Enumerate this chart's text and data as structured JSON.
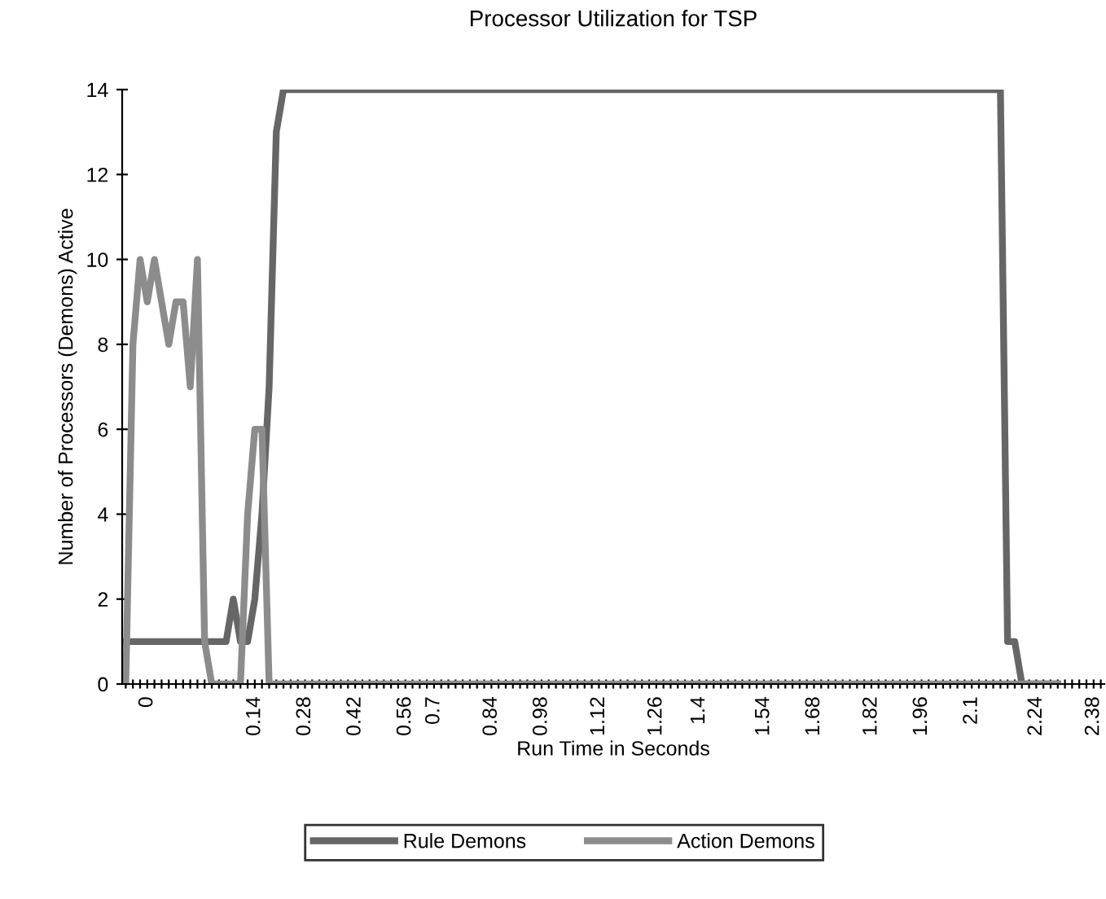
{
  "chart_data": {
    "type": "line",
    "title": "Processor Utilization for TSP",
    "xlabel": "Run Time in Seconds",
    "ylabel": "Number of Processors (Demons) Active",
    "categories": [
      null,
      null,
      null,
      "0",
      null,
      null,
      null,
      null,
      null,
      null,
      null,
      null,
      null,
      null,
      null,
      null,
      null,
      null,
      "0.14",
      null,
      null,
      null,
      null,
      null,
      null,
      "0.28",
      null,
      null,
      null,
      null,
      null,
      null,
      "0.42",
      null,
      null,
      null,
      null,
      null,
      null,
      "0.56",
      null,
      null,
      null,
      "0.7",
      null,
      null,
      null,
      null,
      null,
      null,
      null,
      "0.84",
      null,
      null,
      null,
      null,
      null,
      null,
      "0.98",
      null,
      null,
      null,
      null,
      null,
      null,
      null,
      "1.12",
      null,
      null,
      null,
      null,
      null,
      null,
      null,
      "1.26",
      null,
      null,
      null,
      null,
      null,
      "1.4",
      null,
      null,
      null,
      null,
      null,
      null,
      null,
      null,
      "1.54",
      null,
      null,
      null,
      null,
      null,
      null,
      "1.68",
      null,
      null,
      null,
      null,
      null,
      null,
      null,
      "1.82",
      null,
      null,
      null,
      null,
      null,
      null,
      "1.96",
      null,
      null,
      null,
      null,
      null,
      null,
      "2.1",
      null,
      null,
      null,
      null,
      null,
      null,
      null,
      null,
      "2.24",
      null,
      null,
      null,
      null,
      null,
      null,
      null,
      "2.38",
      null
    ],
    "series": [
      {
        "name": "Rule Demons",
        "color": "#666666",
        "values": [
          1,
          1,
          1,
          1,
          1,
          1,
          1,
          1,
          1,
          1,
          1,
          1,
          1,
          1,
          1,
          2,
          1,
          1,
          2,
          4,
          7,
          13,
          14,
          14,
          14,
          14,
          14,
          14,
          14,
          14,
          14,
          14,
          14,
          14,
          14,
          14,
          14,
          14,
          14,
          14,
          14,
          14,
          14,
          14,
          14,
          14,
          14,
          14,
          14,
          14,
          14,
          14,
          14,
          14,
          14,
          14,
          14,
          14,
          14,
          14,
          14,
          14,
          14,
          14,
          14,
          14,
          14,
          14,
          14,
          14,
          14,
          14,
          14,
          14,
          14,
          14,
          14,
          14,
          14,
          14,
          14,
          14,
          14,
          14,
          14,
          14,
          14,
          14,
          14,
          14,
          14,
          14,
          14,
          14,
          14,
          14,
          14,
          14,
          14,
          14,
          14,
          14,
          14,
          14,
          14,
          14,
          14,
          14,
          14,
          14,
          14,
          14,
          14,
          14,
          14,
          14,
          14,
          14,
          14,
          14,
          14,
          14,
          14,
          1,
          1,
          0,
          0,
          0,
          0,
          0,
          0,
          null,
          null,
          null,
          null,
          null,
          null
        ]
      },
      {
        "name": "Action Demons",
        "color": "#8c8c8c",
        "values": [
          0,
          8,
          10,
          9,
          10,
          9,
          8,
          9,
          9,
          7,
          10,
          1,
          0,
          0,
          0,
          0,
          0,
          4,
          6,
          6,
          0,
          0,
          0,
          0,
          0,
          0,
          0,
          0,
          0,
          0,
          0,
          0,
          0,
          0,
          0,
          0,
          0,
          0,
          0,
          0,
          0,
          0,
          0,
          0,
          0,
          0,
          0,
          0,
          0,
          0,
          0,
          0,
          0,
          0,
          0,
          0,
          0,
          0,
          0,
          0,
          0,
          0,
          0,
          0,
          0,
          0,
          0,
          0,
          0,
          0,
          0,
          0,
          0,
          0,
          0,
          0,
          0,
          0,
          0,
          0,
          0,
          0,
          0,
          0,
          0,
          0,
          0,
          0,
          0,
          0,
          0,
          0,
          0,
          0,
          0,
          0,
          0,
          0,
          0,
          0,
          0,
          0,
          0,
          0,
          0,
          0,
          0,
          0,
          0,
          0,
          0,
          0,
          0,
          0,
          0,
          0,
          0,
          0,
          0,
          0,
          0,
          0,
          0,
          0,
          0,
          0,
          0,
          0,
          0,
          0,
          0,
          null,
          null,
          null,
          null,
          null,
          null
        ]
      }
    ],
    "ylim": [
      0,
      14
    ],
    "yticks": [
      0,
      2,
      4,
      6,
      8,
      10,
      12,
      14
    ],
    "grid": false,
    "legend": "bottom",
    "marker": "none",
    "line_style": "solid"
  }
}
